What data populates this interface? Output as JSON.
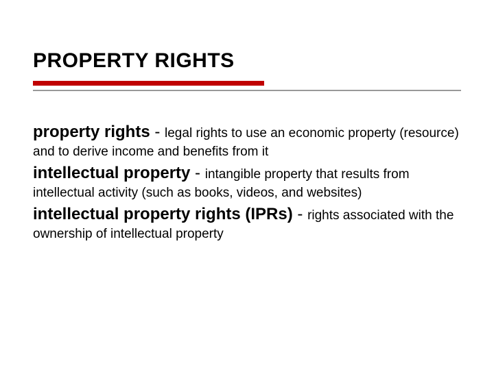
{
  "colors": {
    "accent": "#c00000",
    "text": "#000000",
    "line": "#999999",
    "background": "#ffffff"
  },
  "title": "PROPERTY RIGHTS",
  "definitions": [
    {
      "term": "property rights",
      "dash": " - ",
      "body": "legal rights to use an economic property (resource) and to derive income and benefits from it"
    },
    {
      "term": "intellectual property",
      "dash": " - ",
      "body": "intangible property that results from intellectual activity (such as books, videos, and websites)"
    },
    {
      "term": "intellectual property rights (IPRs)",
      "dash": " - ",
      "body": "rights associated with the ownership of intellectual property"
    }
  ]
}
